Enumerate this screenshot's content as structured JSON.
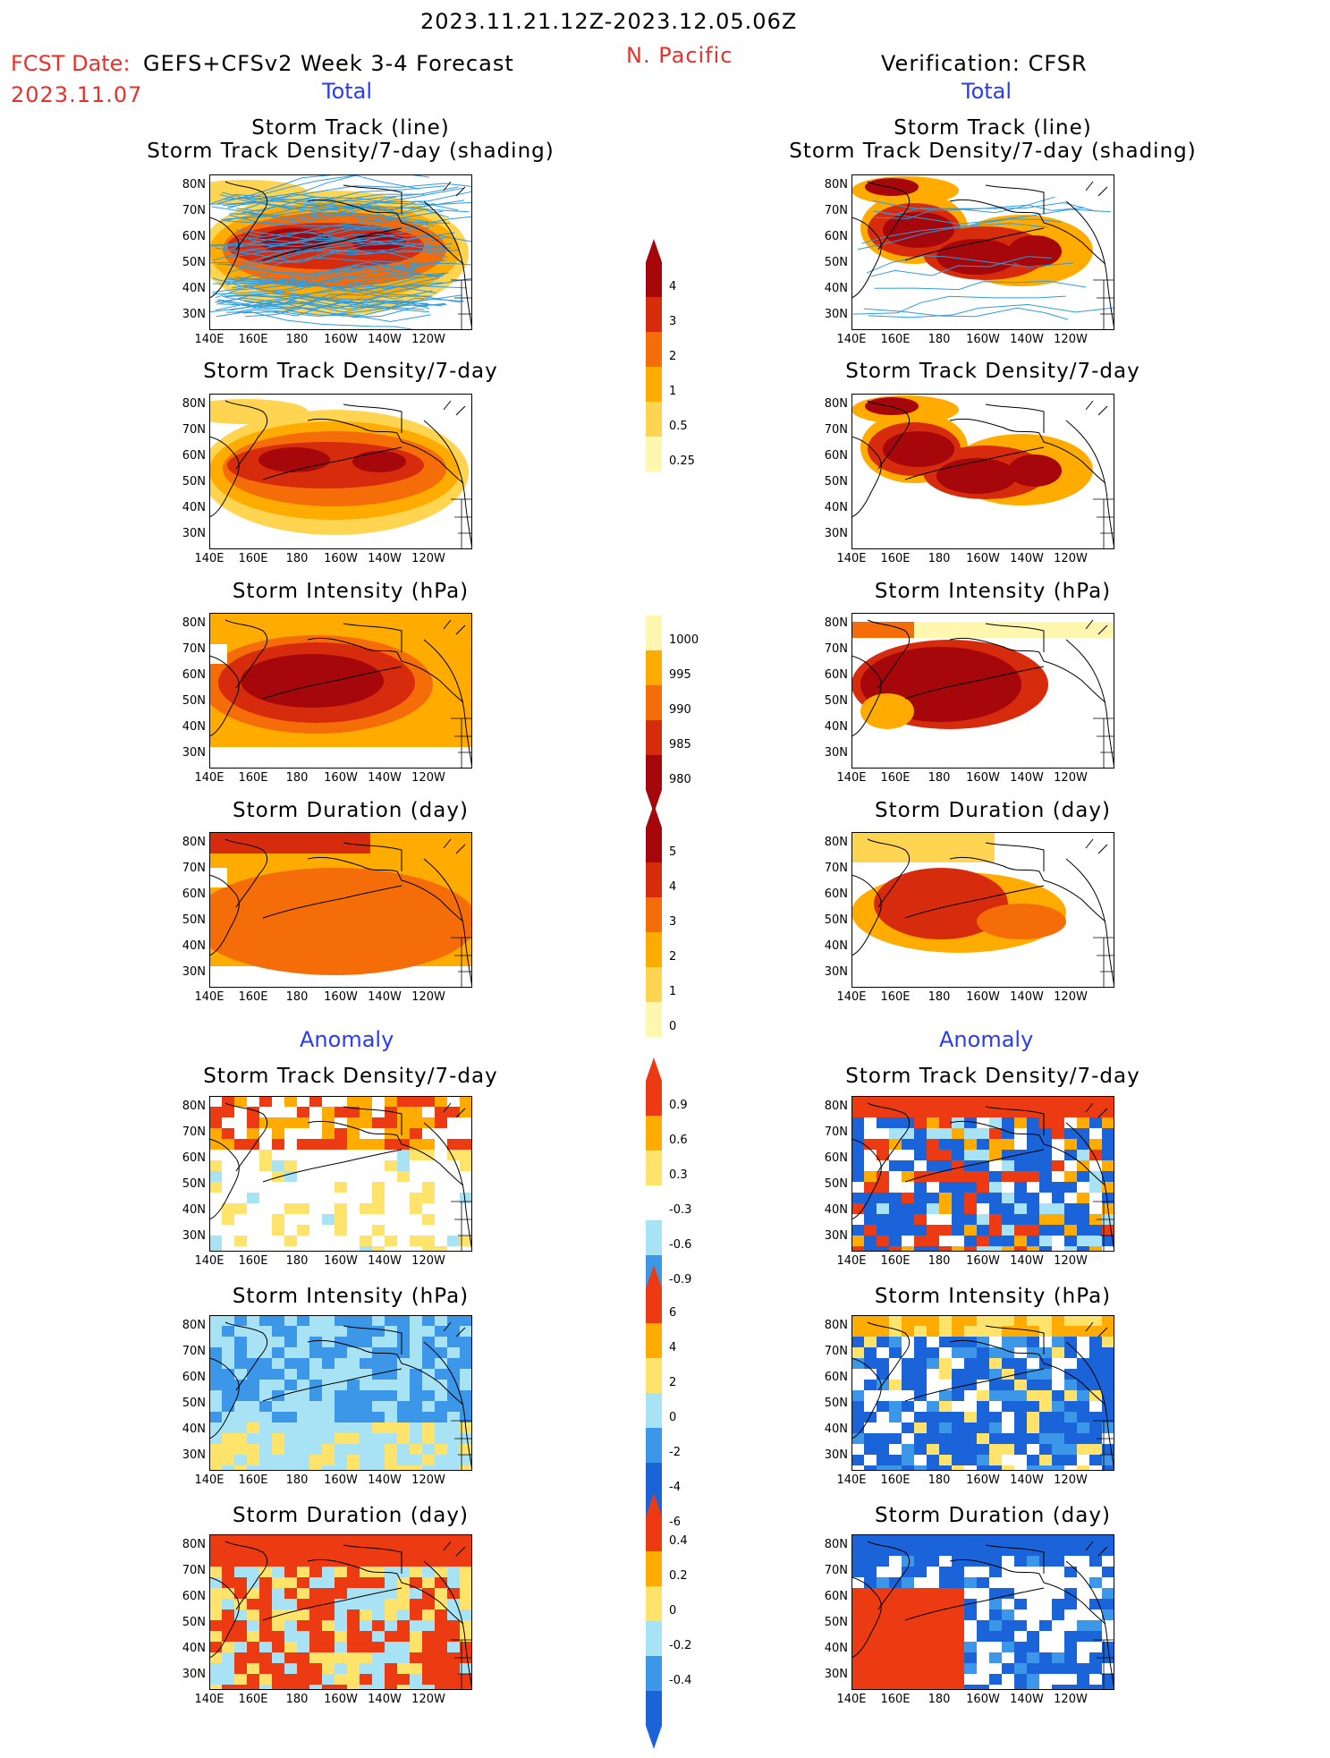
{
  "header": {
    "date_range": "2023.11.21.12Z-2023.12.05.06Z",
    "region": "N. Pacific",
    "fcst_date_label": "FCST Date:",
    "fcst_date": "2023.11.07",
    "forecast_model": "GEFS+CFSv2 Week 3-4 Forecast",
    "verification": "Verification: CFSR"
  },
  "sections": {
    "total": "Total",
    "anomaly": "Anomaly"
  },
  "panel_titles": {
    "track_line": "Storm Track (line)",
    "track_shading": "Storm Track Density/7-day (shading)",
    "density": "Storm Track Density/7-day",
    "intensity": "Storm Intensity (hPa)",
    "duration": "Storm Duration (day)"
  },
  "axes": {
    "lat_ticks": [
      "80N",
      "70N",
      "60N",
      "50N",
      "40N",
      "30N"
    ],
    "lon_ticks": [
      "140E",
      "160E",
      "180",
      "160W",
      "140W",
      "120W"
    ]
  },
  "colorbars": {
    "density": [
      "4",
      "3",
      "2",
      "1",
      "0.5",
      "0.25"
    ],
    "intensity": [
      "1000",
      "995",
      "990",
      "985",
      "980"
    ],
    "duration": [
      "5",
      "4",
      "3",
      "2",
      "1",
      "0"
    ],
    "density_anom": [
      "0.9",
      "0.6",
      "0.3",
      "-0.3",
      "-0.6",
      "-0.9"
    ],
    "intensity_anom": [
      "6",
      "4",
      "2",
      "0",
      "-2",
      "-4",
      "-6"
    ],
    "duration_anom": [
      "0.4",
      "0.2",
      "0",
      "-0.2",
      "-0.4"
    ]
  },
  "colors": {
    "title_red": "#e8312b",
    "section_blue": "#2b3cf0",
    "track_line": "#2f9be0",
    "warm_scale": [
      "#fff7b0",
      "#ffd451",
      "#ffab00",
      "#f46d08",
      "#d72b0d",
      "#a5070a"
    ],
    "intensity_scale": [
      "#fff7b0",
      "#ffab00",
      "#f46d08",
      "#d72b0d",
      "#a5070a"
    ],
    "anom_scale": [
      "#1b63d8",
      "#3c97e8",
      "#a7e3f5",
      "#ffffff",
      "#ffe36a",
      "#ffab00",
      "#ec3a13"
    ]
  }
}
